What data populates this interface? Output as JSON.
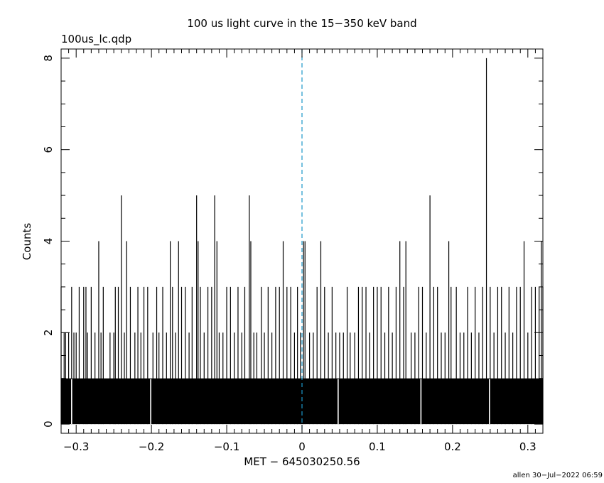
{
  "chart_data": {
    "type": "histogram",
    "title": "100 us light curve in the 15−350 keV band",
    "subtitle": "100us_lc.qdp",
    "xlabel": "MET − 645030250.56",
    "ylabel": "Counts",
    "footer": "allen 30−Jul−2022 06:59",
    "xlim": [
      -0.32,
      0.32
    ],
    "ylim": [
      -0.2,
      8.2
    ],
    "bin_width": 0.0001,
    "grid": false,
    "x_ticks": [
      -0.3,
      -0.2,
      -0.1,
      0,
      0.1,
      0.2,
      0.3
    ],
    "x_tick_labels": [
      "−0.3",
      "−0.2",
      "−0.1",
      "0",
      "0.1",
      "0.2",
      "0.3"
    ],
    "y_ticks": [
      0,
      2,
      4,
      6,
      8
    ],
    "y_tick_labels": [
      "0",
      "2",
      "4",
      "6",
      "8"
    ],
    "trigger_line_x": 0,
    "baseline_level": 1,
    "baseline_gaps": [
      -0.306,
      -0.201,
      0.048,
      0.158,
      0.249
    ],
    "spikes": [
      {
        "x": -0.32,
        "y": 3
      },
      {
        "x": -0.316,
        "y": 2
      },
      {
        "x": -0.314,
        "y": 2
      },
      {
        "x": -0.31,
        "y": 2
      },
      {
        "x": -0.306,
        "y": 3
      },
      {
        "x": -0.303,
        "y": 2
      },
      {
        "x": -0.3,
        "y": 2
      },
      {
        "x": -0.296,
        "y": 3
      },
      {
        "x": -0.29,
        "y": 3
      },
      {
        "x": -0.287,
        "y": 3
      },
      {
        "x": -0.285,
        "y": 2
      },
      {
        "x": -0.28,
        "y": 3
      },
      {
        "x": -0.275,
        "y": 2
      },
      {
        "x": -0.27,
        "y": 4
      },
      {
        "x": -0.267,
        "y": 2
      },
      {
        "x": -0.264,
        "y": 3
      },
      {
        "x": -0.255,
        "y": 2
      },
      {
        "x": -0.25,
        "y": 2
      },
      {
        "x": -0.248,
        "y": 3
      },
      {
        "x": -0.244,
        "y": 3
      },
      {
        "x": -0.24,
        "y": 5
      },
      {
        "x": -0.236,
        "y": 2
      },
      {
        "x": -0.233,
        "y": 4
      },
      {
        "x": -0.228,
        "y": 3
      },
      {
        "x": -0.222,
        "y": 2
      },
      {
        "x": -0.218,
        "y": 3
      },
      {
        "x": -0.214,
        "y": 2
      },
      {
        "x": -0.21,
        "y": 3
      },
      {
        "x": -0.205,
        "y": 3
      },
      {
        "x": -0.198,
        "y": 2
      },
      {
        "x": -0.193,
        "y": 3
      },
      {
        "x": -0.19,
        "y": 2
      },
      {
        "x": -0.185,
        "y": 3
      },
      {
        "x": -0.18,
        "y": 2
      },
      {
        "x": -0.175,
        "y": 4
      },
      {
        "x": -0.172,
        "y": 3
      },
      {
        "x": -0.168,
        "y": 2
      },
      {
        "x": -0.164,
        "y": 4
      },
      {
        "x": -0.16,
        "y": 3
      },
      {
        "x": -0.155,
        "y": 3
      },
      {
        "x": -0.15,
        "y": 2
      },
      {
        "x": -0.146,
        "y": 3
      },
      {
        "x": -0.14,
        "y": 5
      },
      {
        "x": -0.138,
        "y": 4
      },
      {
        "x": -0.135,
        "y": 3
      },
      {
        "x": -0.13,
        "y": 2
      },
      {
        "x": -0.125,
        "y": 3
      },
      {
        "x": -0.12,
        "y": 3
      },
      {
        "x": -0.116,
        "y": 5
      },
      {
        "x": -0.113,
        "y": 4
      },
      {
        "x": -0.11,
        "y": 2
      },
      {
        "x": -0.105,
        "y": 2
      },
      {
        "x": -0.1,
        "y": 3
      },
      {
        "x": -0.095,
        "y": 3
      },
      {
        "x": -0.09,
        "y": 2
      },
      {
        "x": -0.085,
        "y": 3
      },
      {
        "x": -0.08,
        "y": 2
      },
      {
        "x": -0.076,
        "y": 3
      },
      {
        "x": -0.07,
        "y": 5
      },
      {
        "x": -0.068,
        "y": 4
      },
      {
        "x": -0.064,
        "y": 2
      },
      {
        "x": -0.06,
        "y": 2
      },
      {
        "x": -0.054,
        "y": 3
      },
      {
        "x": -0.05,
        "y": 2
      },
      {
        "x": -0.045,
        "y": 3
      },
      {
        "x": -0.04,
        "y": 2
      },
      {
        "x": -0.035,
        "y": 3
      },
      {
        "x": -0.03,
        "y": 3
      },
      {
        "x": -0.025,
        "y": 4
      },
      {
        "x": -0.02,
        "y": 3
      },
      {
        "x": -0.015,
        "y": 3
      },
      {
        "x": -0.01,
        "y": 2
      },
      {
        "x": -0.006,
        "y": 3
      },
      {
        "x": -0.002,
        "y": 2
      },
      {
        "x": 0.002,
        "y": 4
      },
      {
        "x": 0.004,
        "y": 4
      },
      {
        "x": 0.01,
        "y": 2
      },
      {
        "x": 0.015,
        "y": 2
      },
      {
        "x": 0.02,
        "y": 3
      },
      {
        "x": 0.025,
        "y": 4
      },
      {
        "x": 0.03,
        "y": 3
      },
      {
        "x": 0.035,
        "y": 2
      },
      {
        "x": 0.04,
        "y": 3
      },
      {
        "x": 0.045,
        "y": 2
      },
      {
        "x": 0.05,
        "y": 2
      },
      {
        "x": 0.055,
        "y": 2
      },
      {
        "x": 0.06,
        "y": 3
      },
      {
        "x": 0.064,
        "y": 2
      },
      {
        "x": 0.07,
        "y": 2
      },
      {
        "x": 0.075,
        "y": 3
      },
      {
        "x": 0.08,
        "y": 3
      },
      {
        "x": 0.085,
        "y": 3
      },
      {
        "x": 0.09,
        "y": 2
      },
      {
        "x": 0.095,
        "y": 3
      },
      {
        "x": 0.1,
        "y": 3
      },
      {
        "x": 0.105,
        "y": 3
      },
      {
        "x": 0.11,
        "y": 2
      },
      {
        "x": 0.115,
        "y": 3
      },
      {
        "x": 0.12,
        "y": 2
      },
      {
        "x": 0.125,
        "y": 3
      },
      {
        "x": 0.13,
        "y": 4
      },
      {
        "x": 0.135,
        "y": 3
      },
      {
        "x": 0.138,
        "y": 4
      },
      {
        "x": 0.145,
        "y": 2
      },
      {
        "x": 0.15,
        "y": 2
      },
      {
        "x": 0.155,
        "y": 3
      },
      {
        "x": 0.16,
        "y": 3
      },
      {
        "x": 0.165,
        "y": 2
      },
      {
        "x": 0.17,
        "y": 5
      },
      {
        "x": 0.175,
        "y": 3
      },
      {
        "x": 0.18,
        "y": 3
      },
      {
        "x": 0.185,
        "y": 2
      },
      {
        "x": 0.19,
        "y": 2
      },
      {
        "x": 0.195,
        "y": 4
      },
      {
        "x": 0.198,
        "y": 3
      },
      {
        "x": 0.205,
        "y": 3
      },
      {
        "x": 0.21,
        "y": 2
      },
      {
        "x": 0.215,
        "y": 2
      },
      {
        "x": 0.22,
        "y": 3
      },
      {
        "x": 0.225,
        "y": 2
      },
      {
        "x": 0.23,
        "y": 3
      },
      {
        "x": 0.235,
        "y": 2
      },
      {
        "x": 0.24,
        "y": 3
      },
      {
        "x": 0.245,
        "y": 8
      },
      {
        "x": 0.25,
        "y": 3
      },
      {
        "x": 0.255,
        "y": 2
      },
      {
        "x": 0.26,
        "y": 3
      },
      {
        "x": 0.265,
        "y": 3
      },
      {
        "x": 0.27,
        "y": 2
      },
      {
        "x": 0.275,
        "y": 3
      },
      {
        "x": 0.28,
        "y": 2
      },
      {
        "x": 0.285,
        "y": 3
      },
      {
        "x": 0.29,
        "y": 3
      },
      {
        "x": 0.295,
        "y": 4
      },
      {
        "x": 0.3,
        "y": 2
      },
      {
        "x": 0.305,
        "y": 3
      },
      {
        "x": 0.31,
        "y": 3
      },
      {
        "x": 0.315,
        "y": 3
      },
      {
        "x": 0.318,
        "y": 4
      },
      {
        "x": 0.32,
        "y": 3
      }
    ]
  },
  "colors": {
    "background": "#ffffff",
    "foreground": "#000000",
    "trigger_line": "#1a96c8"
  }
}
